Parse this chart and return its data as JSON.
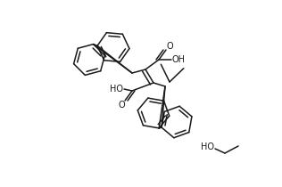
{
  "background_color": "#ffffff",
  "line_color": "#1a1a1a",
  "line_width": 1.1,
  "figsize": [
    3.16,
    2.1
  ],
  "dpi": 100,
  "xlim": [
    0,
    316
  ],
  "ylim": [
    0,
    210
  ]
}
